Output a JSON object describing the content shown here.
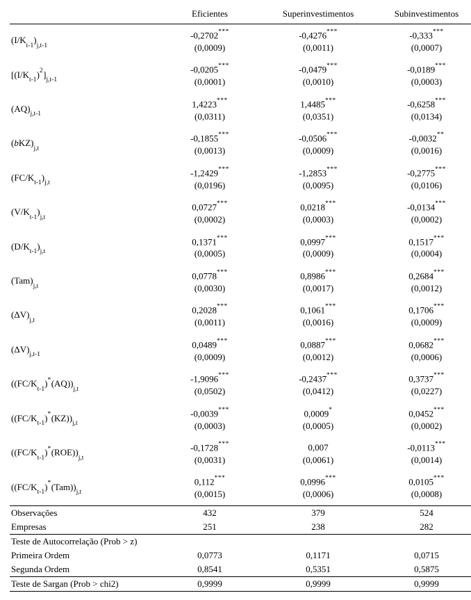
{
  "headers": {
    "c1": "Eficientes",
    "c2": "Superinvestimentos",
    "c3": "Subinvestimentos"
  },
  "rows": [
    {
      "label_html": "(I/K<span class='sub'>t-1</span>)<span class='sub'>j,t-1</span>",
      "c1": {
        "coef": "-0,2702",
        "stars": "***",
        "se": "(0,0009)"
      },
      "c2": {
        "coef": "-0,4276",
        "stars": "***",
        "se": "(0,0011)"
      },
      "c3": {
        "coef": "-0,333",
        "stars": "***",
        "se": "(0,0007)"
      }
    },
    {
      "label_html": "[(I/K<span class='sub'>t-1</span>)<span class='sup'>2</span>]<span class='sub'>j,t-1</span>",
      "c1": {
        "coef": "-0,0205",
        "stars": "***",
        "se": "(0,0001)"
      },
      "c2": {
        "coef": "-0,0479",
        "stars": "***",
        "se": "(0,0010)"
      },
      "c3": {
        "coef": "-0,0189",
        "stars": "***",
        "se": "(0,0003)"
      }
    },
    {
      "label_html": "(AQ)<span class='sub'>j,t-1</span>",
      "c1": {
        "coef": "1,4223",
        "stars": "***",
        "se": "(0,0311)"
      },
      "c2": {
        "coef": "1,4485",
        "stars": "***",
        "se": "(0,0351)"
      },
      "c3": {
        "coef": "-0,6258",
        "stars": "***",
        "se": "(0,0134)"
      }
    },
    {
      "label_html": "(<i>b</i>KZ)<span class='sub'>j,t</span>",
      "c1": {
        "coef": "-0,1855",
        "stars": "***",
        "se": "(0,0013)"
      },
      "c2": {
        "coef": "-0,0506",
        "stars": "***",
        "se": "(0,0009)"
      },
      "c3": {
        "coef": "-0,0032",
        "stars": "**",
        "se": "(0,0016)"
      }
    },
    {
      "label_html": "(FC/K<span class='sub'>t-1</span>)<span class='sub'>j,t</span>",
      "c1": {
        "coef": "-1,2429",
        "stars": "***",
        "se": "(0,0196)"
      },
      "c2": {
        "coef": "-1,2853",
        "stars": "***",
        "se": "(0,0095)"
      },
      "c3": {
        "coef": "-0,2775",
        "stars": "***",
        "se": "(0,0106)"
      }
    },
    {
      "label_html": "(V/K<span class='sub'>t-1</span>)<span class='sub'>j,t</span>",
      "c1": {
        "coef": "0,0727",
        "stars": "***",
        "se": "(0,0002)"
      },
      "c2": {
        "coef": "0,0218",
        "stars": "***",
        "se": "(0,0003)"
      },
      "c3": {
        "coef": "-0,0134",
        "stars": "***",
        "se": "(0,0002)"
      }
    },
    {
      "label_html": "(D/K<span class='sub'>t-1</span>)<span class='sub'>j,t</span>",
      "c1": {
        "coef": "0,1371",
        "stars": "***",
        "se": "(0,0005)"
      },
      "c2": {
        "coef": "0,0997",
        "stars": "***",
        "se": "(0,0009)"
      },
      "c3": {
        "coef": "0,1517",
        "stars": "***",
        "se": "(0,0004)"
      }
    },
    {
      "label_html": "(Tam)<span class='sub'>j,t</span>",
      "c1": {
        "coef": "0,0778",
        "stars": "***",
        "se": "(0,0030)"
      },
      "c2": {
        "coef": "0,8986",
        "stars": "***",
        "se": "(0,0017)"
      },
      "c3": {
        "coef": "0,2684",
        "stars": "***",
        "se": "(0,0012)"
      }
    },
    {
      "label_html": "(ΔV)<span class='sub'>j,t</span>",
      "c1": {
        "coef": "0,2028",
        "stars": "***",
        "se": "(0,0011)"
      },
      "c2": {
        "coef": "0,1061",
        "stars": "***",
        "se": "(0,0016)"
      },
      "c3": {
        "coef": "0,1706",
        "stars": "***",
        "se": "(0,0009)"
      }
    },
    {
      "label_html": "(ΔV)<span class='sub'>j,t-1</span>",
      "c1": {
        "coef": "0,0489",
        "stars": "***",
        "se": "(0,0009)"
      },
      "c2": {
        "coef": "0,0887",
        "stars": "***",
        "se": "(0,0012)"
      },
      "c3": {
        "coef": "0,0682",
        "stars": "***",
        "se": "(0,0006)"
      }
    },
    {
      "label_html": "((FC/K<span class='sub'>t-1</span>)<span class='sup'>*</span>(AQ))<span class='sub'>j,t</span>",
      "c1": {
        "coef": "-1,9096",
        "stars": "***",
        "se": "(0,0502)"
      },
      "c2": {
        "coef": "-0,2437",
        "stars": "***",
        "se": "(0,0412)"
      },
      "c3": {
        "coef": "0,3737",
        "stars": "***",
        "se": "(0,0227)"
      }
    },
    {
      "label_html": "((FC/K<span class='sub'>t-1</span>)<span class='sup'>*</span>(KZ))<span class='sub'>j,t</span>",
      "c1": {
        "coef": "-0,0039",
        "stars": "***",
        "se": "(0,0003)"
      },
      "c2": {
        "coef": "0,0009",
        "stars": "*",
        "se": "(0,0005)"
      },
      "c3": {
        "coef": "0,0452",
        "stars": "***",
        "se": "(0,0002)"
      }
    },
    {
      "label_html": "((FC/K<span class='sub'>t-1</span>)<span class='sup'>*</span>(ROE))<span class='sub'>j,t</span>",
      "c1": {
        "coef": "-0,1728",
        "stars": "***",
        "se": "(0,0031)"
      },
      "c2": {
        "coef": "0,007",
        "stars": "",
        "se": "(0,0061)"
      },
      "c3": {
        "coef": "-0,0113",
        "stars": "***",
        "se": "(0,0014)"
      }
    },
    {
      "label_html": "((FC/K<span class='sub'>t-1</span>)<span class='sup'>*</span>(Tam))<span class='sub'>j,t</span>",
      "c1": {
        "coef": "0,112",
        "stars": "***",
        "se": "(0,0015)"
      },
      "c2": {
        "coef": "0,0996",
        "stars": "***",
        "se": "(0,0006)"
      },
      "c3": {
        "coef": "0,0105",
        "stars": "***",
        "se": "(0,0008)"
      }
    }
  ],
  "footer": {
    "obs": {
      "label": "Observações",
      "c1": "432",
      "c2": "379",
      "c3": "524"
    },
    "firms": {
      "label": "Empresas",
      "c1": "251",
      "c2": "238",
      "c3": "282"
    },
    "ac_title": {
      "label": "Teste de Autocorrelação (Prob > z)"
    },
    "ac1": {
      "label": "Primeira Ordem",
      "c1": "0,0773",
      "c2": "0,1171",
      "c3": "0,0715"
    },
    "ac2": {
      "label": "Segunda Ordem",
      "c1": "0,8541",
      "c2": "0,5351",
      "c3": "0,5875"
    },
    "sargan": {
      "label": "Teste de Sargan (Prob > chi2)",
      "c1": "0,9999",
      "c2": "0,9999",
      "c3": "0,9999"
    }
  }
}
